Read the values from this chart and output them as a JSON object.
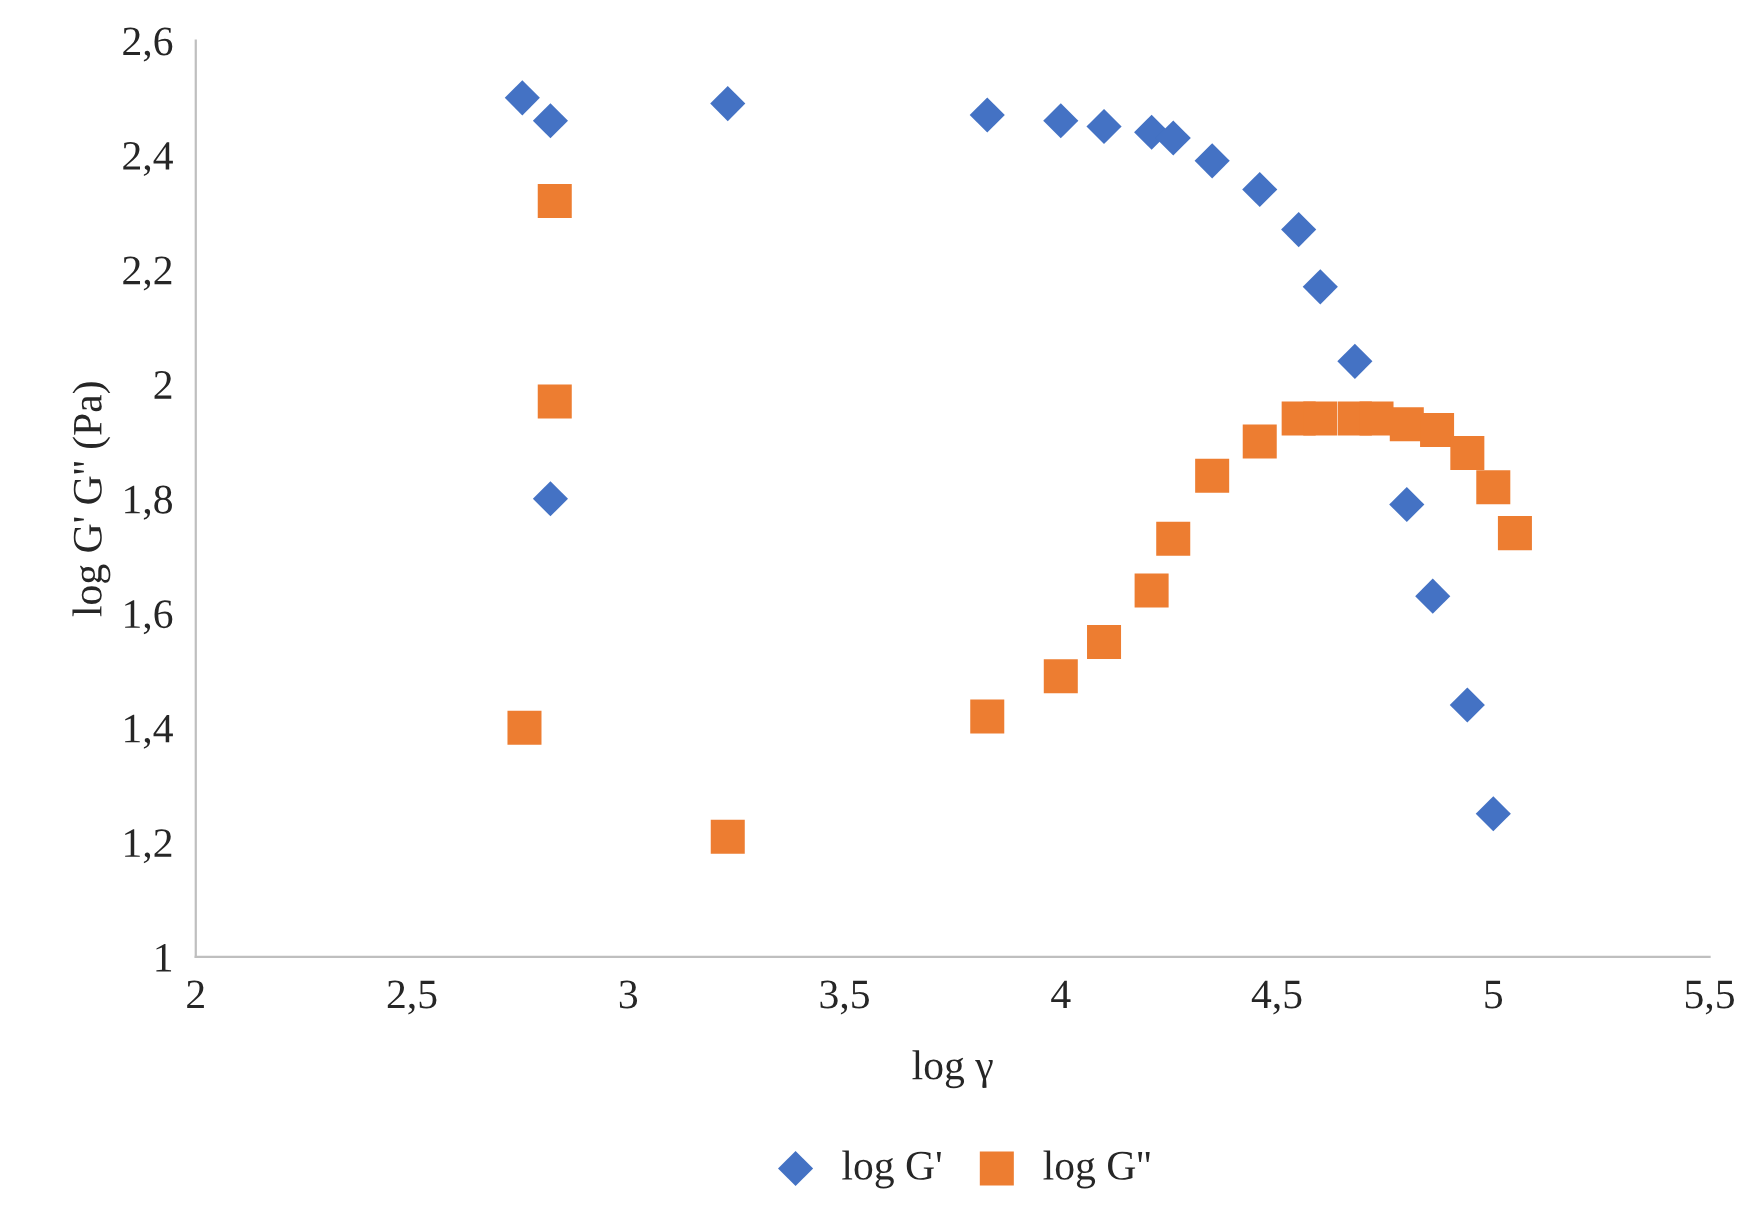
{
  "chart_data": {
    "type": "scatter",
    "xlabel": "log γ",
    "ylabel": "log G' G'' (Pa)",
    "series": [
      {
        "name": "log G'",
        "color": "#4472c4",
        "marker": "diamond",
        "x": [
          2.755,
          2.82,
          2.82,
          3.23,
          3.83,
          4.0,
          4.1,
          4.21,
          4.26,
          4.35,
          4.46,
          4.55,
          4.6,
          4.68,
          4.8,
          4.86,
          4.94,
          5.0
        ],
        "values": [
          2.5,
          2.46,
          1.8,
          2.49,
          2.47,
          2.46,
          2.45,
          2.44,
          2.43,
          2.39,
          2.34,
          2.27,
          2.17,
          2.04,
          1.79,
          1.63,
          1.44,
          1.25
        ]
      },
      {
        "name": "log G''",
        "color": "#ed7d31",
        "marker": "square",
        "x": [
          2.76,
          2.83,
          2.83,
          3.23,
          3.83,
          4.0,
          4.1,
          4.21,
          4.26,
          4.35,
          4.46,
          4.55,
          4.6,
          4.68,
          4.73,
          4.8,
          4.87,
          4.94,
          5.0,
          5.05
        ],
        "values": [
          1.4,
          2.32,
          1.97,
          1.21,
          1.42,
          1.49,
          1.55,
          1.64,
          1.73,
          1.84,
          1.9,
          1.94,
          1.94,
          1.94,
          1.94,
          1.93,
          1.92,
          1.88,
          1.82,
          1.74
        ]
      }
    ],
    "xlim": [
      2,
      5.5
    ],
    "xticks": [
      2,
      {
        "value": 2.5,
        "label": "2,5"
      },
      3,
      {
        "value": 3.5,
        "label": "3,5"
      },
      4,
      {
        "value": 4.5,
        "label": "4,5"
      },
      5,
      {
        "value": 5.5,
        "label": "5,5"
      }
    ],
    "ylim": [
      1,
      2.6
    ],
    "yticks": [
      1,
      {
        "value": 1.2,
        "label": "1,2"
      },
      {
        "value": 1.4,
        "label": "1,4"
      },
      {
        "value": 1.6,
        "label": "1,6"
      },
      {
        "value": 1.8,
        "label": "1,8"
      },
      2,
      {
        "value": 2.2,
        "label": "2,2"
      },
      {
        "value": 2.4,
        "label": "2,4"
      },
      {
        "value": 2.6,
        "label": "2,6"
      }
    ],
    "grid": false,
    "legend": "bottom"
  }
}
